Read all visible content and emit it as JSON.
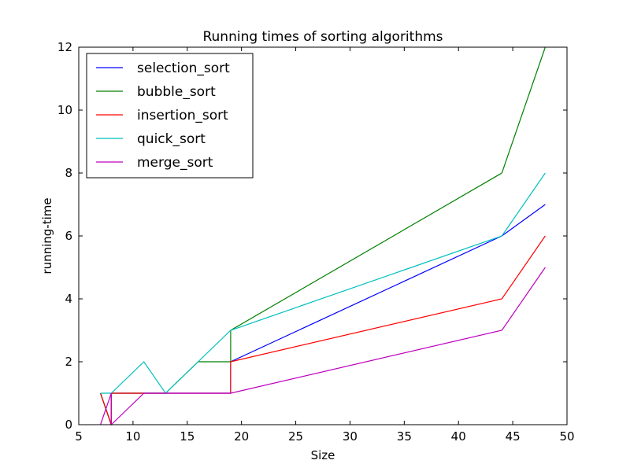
{
  "chart_data": {
    "type": "line",
    "title": "Running times of sorting algorithms",
    "xlabel": "Size",
    "ylabel": "running-time",
    "xlim": [
      5,
      50
    ],
    "ylim": [
      0,
      12
    ],
    "xticks": [
      5,
      10,
      15,
      20,
      25,
      30,
      35,
      40,
      45,
      50
    ],
    "yticks": [
      0,
      2,
      4,
      6,
      8,
      10,
      12
    ],
    "grid": false,
    "legend_position": "top-left",
    "series": [
      {
        "name": "selection_sort",
        "color": "#0000ff",
        "points": [
          [
            7,
            1
          ],
          [
            8,
            0
          ],
          [
            8,
            1
          ],
          [
            11,
            1
          ],
          [
            13,
            1
          ],
          [
            16,
            1
          ],
          [
            19,
            1
          ],
          [
            19,
            2
          ],
          [
            44,
            6
          ],
          [
            48,
            7
          ]
        ]
      },
      {
        "name": "bubble_sort",
        "color": "#008000",
        "points": [
          [
            7,
            1
          ],
          [
            8,
            0
          ],
          [
            8,
            1
          ],
          [
            11,
            1
          ],
          [
            13,
            1
          ],
          [
            16,
            2
          ],
          [
            19,
            2
          ],
          [
            19,
            3
          ],
          [
            44,
            8
          ],
          [
            48,
            12
          ]
        ]
      },
      {
        "name": "insertion_sort",
        "color": "#ff0000",
        "points": [
          [
            7,
            1
          ],
          [
            8,
            0
          ],
          [
            8,
            1
          ],
          [
            11,
            1
          ],
          [
            13,
            1
          ],
          [
            16,
            1
          ],
          [
            19,
            1
          ],
          [
            19,
            2
          ],
          [
            44,
            4
          ],
          [
            48,
            6
          ]
        ]
      },
      {
        "name": "quick_sort",
        "color": "#00bfbf",
        "points": [
          [
            7,
            1
          ],
          [
            8,
            1
          ],
          [
            11,
            2
          ],
          [
            13,
            1
          ],
          [
            16,
            2
          ],
          [
            19,
            3
          ],
          [
            44,
            6
          ],
          [
            48,
            8
          ]
        ]
      },
      {
        "name": "merge_sort",
        "color": "#bf00bf",
        "points": [
          [
            7,
            0
          ],
          [
            8,
            1
          ],
          [
            8,
            0
          ],
          [
            11,
            1
          ],
          [
            13,
            1
          ],
          [
            16,
            1
          ],
          [
            19,
            1
          ],
          [
            44,
            3
          ],
          [
            48,
            5
          ]
        ]
      }
    ]
  }
}
